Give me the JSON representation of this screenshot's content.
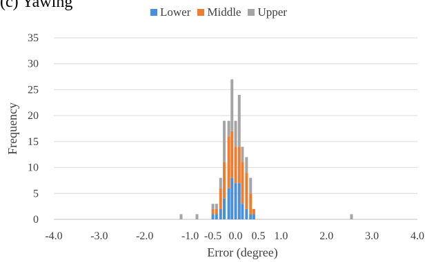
{
  "chart_data": {
    "type": "bar",
    "stacked": true,
    "title": "(c) Yawing",
    "xlabel": "Error (degree)",
    "ylabel": "Frequency",
    "xlim": [
      -4.0,
      4.0
    ],
    "ylim": [
      0,
      35
    ],
    "xticks": [
      "-4.0",
      "-3.0",
      "-2.0",
      "-1.0",
      "-0.5",
      "0.0",
      "0.5",
      "1.0",
      "2.0",
      "3.0",
      "4.0"
    ],
    "yticks": [
      "0",
      "5",
      "10",
      "15",
      "20",
      "25",
      "30",
      "35"
    ],
    "grid": true,
    "legend_position": "top",
    "x": [
      -1.2,
      -0.85,
      -0.5,
      -0.42,
      -0.33,
      -0.25,
      -0.15,
      -0.08,
      0.0,
      0.08,
      0.15,
      0.24,
      0.33,
      0.4,
      0.48,
      2.55
    ],
    "series": [
      {
        "name": "Lower",
        "color": "#4a90d9",
        "values": [
          0,
          0,
          1,
          1,
          2,
          4,
          6,
          8,
          7,
          7,
          3,
          2,
          1,
          1,
          0,
          0
        ]
      },
      {
        "name": "Middle",
        "color": "#ed7d31",
        "values": [
          0,
          0,
          1,
          1,
          4,
          7,
          10,
          9,
          7,
          7,
          8,
          7,
          4,
          1,
          0,
          0
        ]
      },
      {
        "name": "Upper",
        "color": "#a5a5a5",
        "values": [
          1,
          1,
          1,
          1,
          2,
          8,
          3,
          10,
          5,
          10,
          3,
          3,
          3,
          0,
          0,
          1
        ]
      }
    ]
  }
}
